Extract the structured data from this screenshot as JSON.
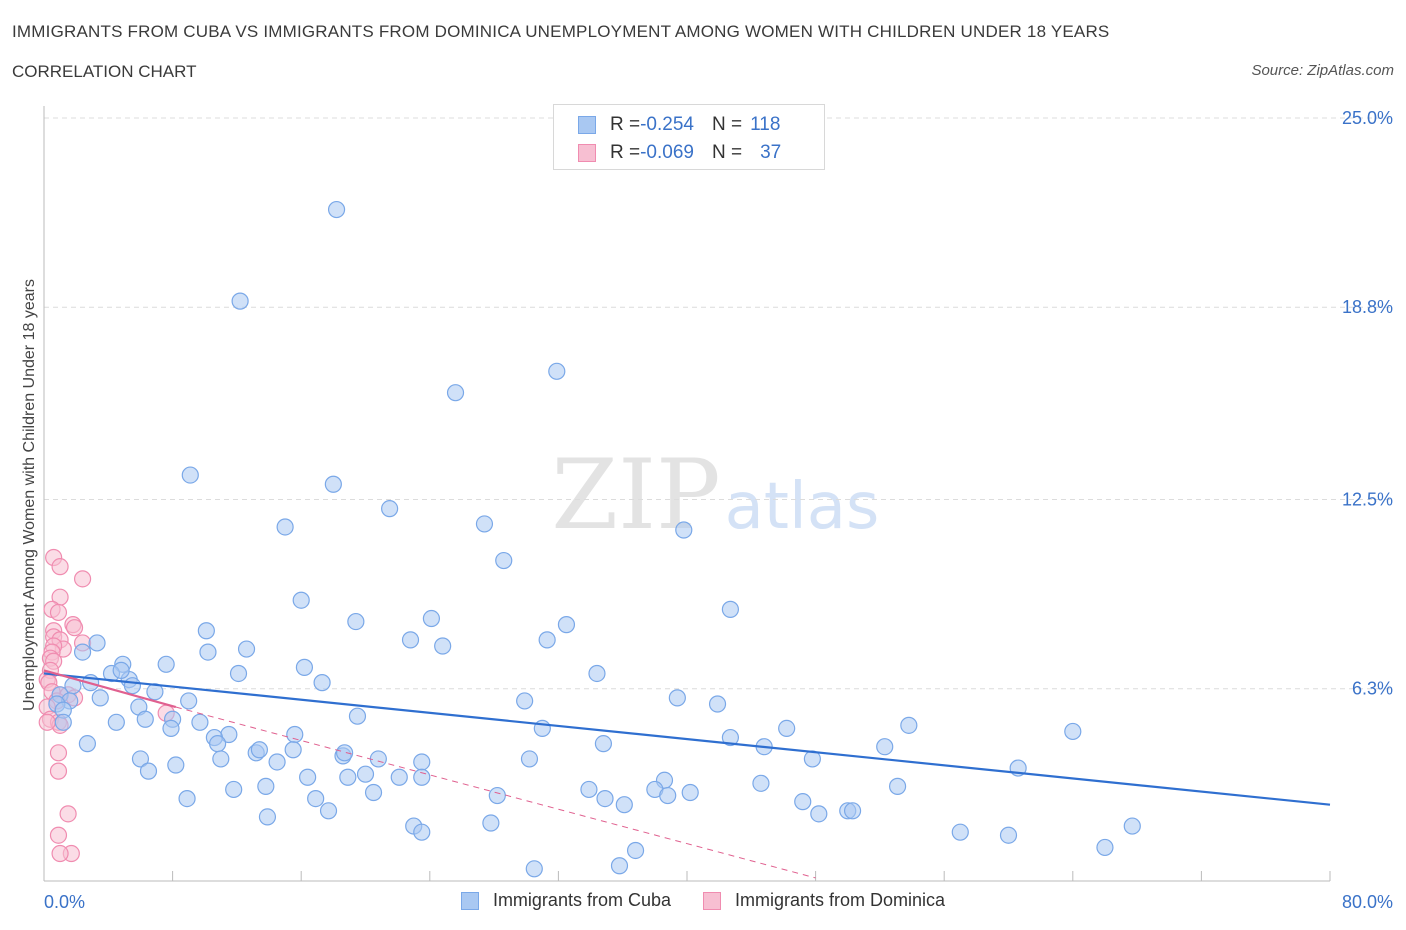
{
  "title": "IMMIGRANTS FROM CUBA VS IMMIGRANTS FROM DOMINICA UNEMPLOYMENT AMONG WOMEN WITH CHILDREN UNDER 18 YEARS",
  "subtitle": "CORRELATION CHART",
  "source": "Source: ZipAtlas.com",
  "watermark": {
    "zip": "ZIP",
    "atlas": "atlas"
  },
  "legend_top": [
    {
      "r_label": "R = ",
      "r_value": "-0.254",
      "n_label": "N = ",
      "n_value": "118"
    },
    {
      "r_label": "R = ",
      "r_value": "-0.069",
      "n_label": "N = ",
      "n_value": "37"
    }
  ],
  "colors": {
    "cuba": "#7aa8e8",
    "cuba_fill": "#a9c8f2",
    "cuba_line": "#2f6fd0",
    "dominica": "#f08cb0",
    "dominica_fill": "#f7bfd2",
    "dominica_line": "#e0608f",
    "axis_text": "#3a72c8",
    "grid": "#dcdcdc"
  },
  "chart_data": {
    "type": "scatter",
    "title": "IMMIGRANTS FROM CUBA VS IMMIGRANTS FROM DOMINICA UNEMPLOYMENT AMONG WOMEN WITH CHILDREN UNDER 18 YEARS",
    "xlabel": "",
    "ylabel": "Unemployment Among Women with Children Under 18 years",
    "xlim": [
      0,
      80
    ],
    "ylim": [
      0,
      25
    ],
    "x_tick_labels": [
      "0.0%",
      "80.0%"
    ],
    "y_ticks": [
      6.3,
      12.5,
      18.8,
      25.0
    ],
    "y_tick_labels": [
      "6.3%",
      "12.5%",
      "18.8%",
      "25.0%"
    ],
    "grid": true,
    "legend_position": "bottom",
    "series": [
      {
        "name": "Immigrants from Cuba",
        "trend": {
          "x": [
            0,
            80
          ],
          "y": [
            6.8,
            2.5
          ]
        },
        "points": [
          [
            18.2,
            22.0
          ],
          [
            12.2,
            19.0
          ],
          [
            31.9,
            16.7
          ],
          [
            25.6,
            16.0
          ],
          [
            9.1,
            13.3
          ],
          [
            18.0,
            13.0
          ],
          [
            21.5,
            12.2
          ],
          [
            15.0,
            11.6
          ],
          [
            27.4,
            11.7
          ],
          [
            39.8,
            11.5
          ],
          [
            28.6,
            10.5
          ],
          [
            16.0,
            9.2
          ],
          [
            42.7,
            8.9
          ],
          [
            24.1,
            8.6
          ],
          [
            19.4,
            8.5
          ],
          [
            32.5,
            8.4
          ],
          [
            10.1,
            8.2
          ],
          [
            22.8,
            7.9
          ],
          [
            31.3,
            7.9
          ],
          [
            24.8,
            7.7
          ],
          [
            3.3,
            7.8
          ],
          [
            12.6,
            7.6
          ],
          [
            10.2,
            7.5
          ],
          [
            2.4,
            7.5
          ],
          [
            7.6,
            7.1
          ],
          [
            4.9,
            7.1
          ],
          [
            16.2,
            7.0
          ],
          [
            4.2,
            6.8
          ],
          [
            12.1,
            6.8
          ],
          [
            34.4,
            6.8
          ],
          [
            5.3,
            6.6
          ],
          [
            17.3,
            6.5
          ],
          [
            2.9,
            6.5
          ],
          [
            1.8,
            6.4
          ],
          [
            5.5,
            6.4
          ],
          [
            6.9,
            6.2
          ],
          [
            39.4,
            6.0
          ],
          [
            1.0,
            6.1
          ],
          [
            4.8,
            6.9
          ],
          [
            3.5,
            6.0
          ],
          [
            9.0,
            5.9
          ],
          [
            41.9,
            5.8
          ],
          [
            29.9,
            5.9
          ],
          [
            5.9,
            5.7
          ],
          [
            1.6,
            5.9
          ],
          [
            0.8,
            5.8
          ],
          [
            1.2,
            5.6
          ],
          [
            19.5,
            5.4
          ],
          [
            8.0,
            5.3
          ],
          [
            6.3,
            5.3
          ],
          [
            4.5,
            5.2
          ],
          [
            9.7,
            5.2
          ],
          [
            1.2,
            5.2
          ],
          [
            7.9,
            5.0
          ],
          [
            31.0,
            5.0
          ],
          [
            46.2,
            5.0
          ],
          [
            53.8,
            5.1
          ],
          [
            64.0,
            4.9
          ],
          [
            11.5,
            4.8
          ],
          [
            42.7,
            4.7
          ],
          [
            15.6,
            4.8
          ],
          [
            10.6,
            4.7
          ],
          [
            10.8,
            4.5
          ],
          [
            2.7,
            4.5
          ],
          [
            34.8,
            4.5
          ],
          [
            44.8,
            4.4
          ],
          [
            52.3,
            4.4
          ],
          [
            13.2,
            4.2
          ],
          [
            13.4,
            4.3
          ],
          [
            15.5,
            4.3
          ],
          [
            18.6,
            4.1
          ],
          [
            18.7,
            4.2
          ],
          [
            6.0,
            4.0
          ],
          [
            11.0,
            4.0
          ],
          [
            8.2,
            3.8
          ],
          [
            14.5,
            3.9
          ],
          [
            20.8,
            4.0
          ],
          [
            23.5,
            3.9
          ],
          [
            30.2,
            4.0
          ],
          [
            47.8,
            4.0
          ],
          [
            60.6,
            3.7
          ],
          [
            6.5,
            3.6
          ],
          [
            16.4,
            3.4
          ],
          [
            18.9,
            3.4
          ],
          [
            20.0,
            3.5
          ],
          [
            22.1,
            3.4
          ],
          [
            23.5,
            3.4
          ],
          [
            38.6,
            3.3
          ],
          [
            44.6,
            3.2
          ],
          [
            53.1,
            3.1
          ],
          [
            11.8,
            3.0
          ],
          [
            13.8,
            3.1
          ],
          [
            20.5,
            2.9
          ],
          [
            33.9,
            3.0
          ],
          [
            38.0,
            3.0
          ],
          [
            38.8,
            2.8
          ],
          [
            40.2,
            2.9
          ],
          [
            8.9,
            2.7
          ],
          [
            16.9,
            2.7
          ],
          [
            28.2,
            2.8
          ],
          [
            34.9,
            2.7
          ],
          [
            47.2,
            2.6
          ],
          [
            36.1,
            2.5
          ],
          [
            50.0,
            2.3
          ],
          [
            48.2,
            2.2
          ],
          [
            17.7,
            2.3
          ],
          [
            13.9,
            2.1
          ],
          [
            50.3,
            2.3
          ],
          [
            27.8,
            1.9
          ],
          [
            23.0,
            1.8
          ],
          [
            23.5,
            1.6
          ],
          [
            57.0,
            1.6
          ],
          [
            60.0,
            1.5
          ],
          [
            67.7,
            1.8
          ],
          [
            66.0,
            1.1
          ],
          [
            36.8,
            1.0
          ],
          [
            30.5,
            0.4
          ],
          [
            35.8,
            0.5
          ]
        ]
      },
      {
        "name": "Immigrants from Dominica",
        "trend": {
          "x": [
            0,
            8.2
          ],
          "y": [
            6.9,
            5.7
          ]
        },
        "trend_extension": {
          "x": [
            8.2,
            48
          ],
          "y": [
            5.7,
            0.1
          ]
        },
        "points": [
          [
            0.6,
            10.6
          ],
          [
            1.0,
            10.3
          ],
          [
            2.4,
            9.9
          ],
          [
            1.0,
            9.3
          ],
          [
            0.5,
            8.9
          ],
          [
            0.9,
            8.8
          ],
          [
            1.8,
            8.4
          ],
          [
            1.9,
            8.3
          ],
          [
            0.6,
            8.2
          ],
          [
            0.6,
            8.0
          ],
          [
            1.0,
            7.9
          ],
          [
            2.4,
            7.8
          ],
          [
            1.2,
            7.6
          ],
          [
            0.6,
            7.7
          ],
          [
            0.5,
            7.5
          ],
          [
            0.4,
            7.3
          ],
          [
            0.6,
            7.2
          ],
          [
            0.4,
            6.9
          ],
          [
            0.2,
            6.6
          ],
          [
            0.3,
            6.5
          ],
          [
            1.0,
            6.1
          ],
          [
            0.5,
            6.2
          ],
          [
            1.5,
            6.1
          ],
          [
            1.9,
            6.0
          ],
          [
            0.8,
            5.9
          ],
          [
            0.2,
            5.7
          ],
          [
            7.6,
            5.5
          ],
          [
            0.4,
            5.3
          ],
          [
            0.9,
            5.2
          ],
          [
            1.0,
            5.1
          ],
          [
            0.2,
            5.2
          ],
          [
            0.9,
            4.2
          ],
          [
            0.9,
            3.6
          ],
          [
            1.5,
            2.2
          ],
          [
            0.9,
            1.5
          ],
          [
            1.7,
            0.9
          ],
          [
            1.0,
            0.9
          ]
        ]
      }
    ]
  },
  "bottom_legend": [
    "Immigrants from Cuba",
    "Immigrants from Dominica"
  ]
}
